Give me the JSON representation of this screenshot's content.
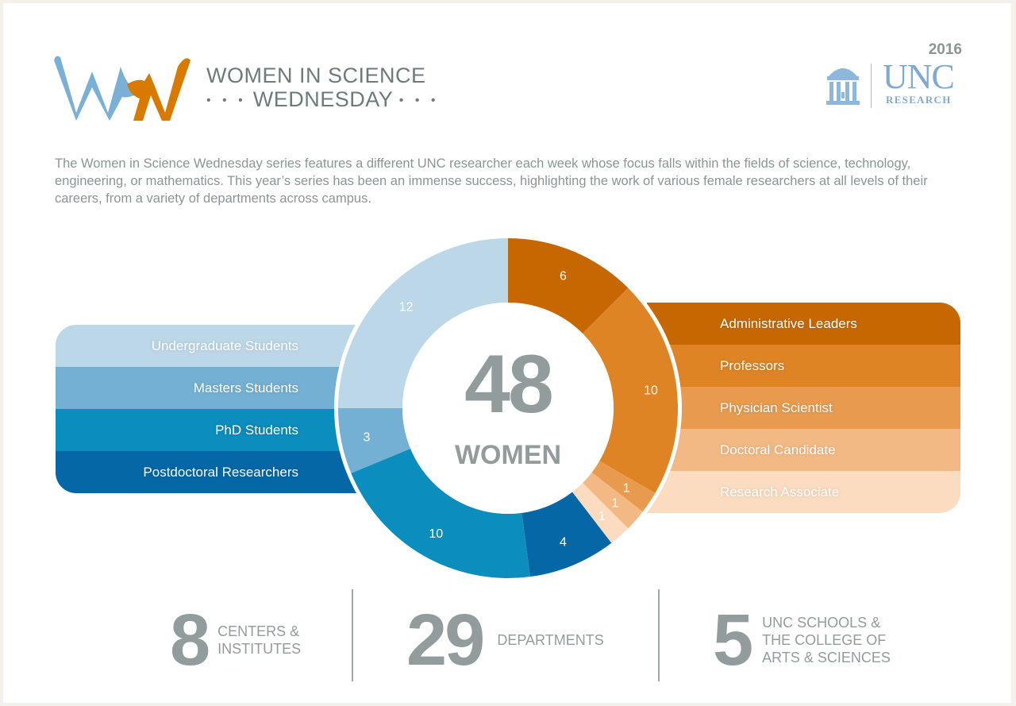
{
  "header": {
    "logo_mark": "WSW",
    "title_line1": "WOMEN IN SCIENCE",
    "title_line2": "WEDNESDAY",
    "dots": "• • •",
    "year": "2016",
    "unc_word": "UNC",
    "unc_sub": "RESEARCH"
  },
  "intro": "The Women in Science Wednesday series features a different UNC researcher each week whose focus falls within the fields of science, technology, engineering, or mathematics. This year’s series has been an immense success, highlighting the work of various female researchers at all levels of their careers, from a variety of departments across campus.",
  "center": {
    "total": "48",
    "label": "WOMEN"
  },
  "legend_left": [
    {
      "label": "Undergraduate Students",
      "color": "#bcd7e8"
    },
    {
      "label": "Masters Students",
      "color": "#74b0d3"
    },
    {
      "label": "PhD Students",
      "color": "#0b8dbd"
    },
    {
      "label": "Postdoctoral Researchers",
      "color": "#0567a6"
    }
  ],
  "legend_right": [
    {
      "label": "Administrative Leaders",
      "color": "#c76701"
    },
    {
      "label": "Professors",
      "color": "#de8424"
    },
    {
      "label": "Physician Scientist",
      "color": "#e89a4e"
    },
    {
      "label": "Doctoral Candidate",
      "color": "#f3b985"
    },
    {
      "label": "Research Associate",
      "color": "#fcdcc0"
    }
  ],
  "stats": [
    {
      "number": "8",
      "label_lines": [
        "CENTERS &",
        "INSTITUTES"
      ]
    },
    {
      "number": "29",
      "label_lines": [
        "DEPARTMENTS"
      ]
    },
    {
      "number": "5",
      "label_lines": [
        "UNC SCHOOLS &",
        "THE COLLEGE OF",
        "ARTS & SCIENCES"
      ]
    }
  ],
  "chart_data": {
    "type": "pie",
    "title": "48 WOMEN",
    "subtype": "donut",
    "categories": [
      "Administrative Leaders",
      "Professors",
      "Physician Scientist",
      "Doctoral Candidate",
      "Research Associate",
      "Postdoctoral Researchers",
      "PhD Students",
      "Masters Students",
      "Undergraduate Students"
    ],
    "values": [
      6,
      10,
      1,
      1,
      1,
      4,
      10,
      3,
      12
    ],
    "colors": [
      "#c76701",
      "#de8424",
      "#e89a4e",
      "#f3b985",
      "#fcdcc0",
      "#0567a6",
      "#0b8dbd",
      "#74b0d3",
      "#bcd7e8"
    ],
    "total": 48,
    "start_angle": "12 o'clock, clockwise",
    "legend_position": "left (students/postdocs) and right (faculty/staff)"
  }
}
